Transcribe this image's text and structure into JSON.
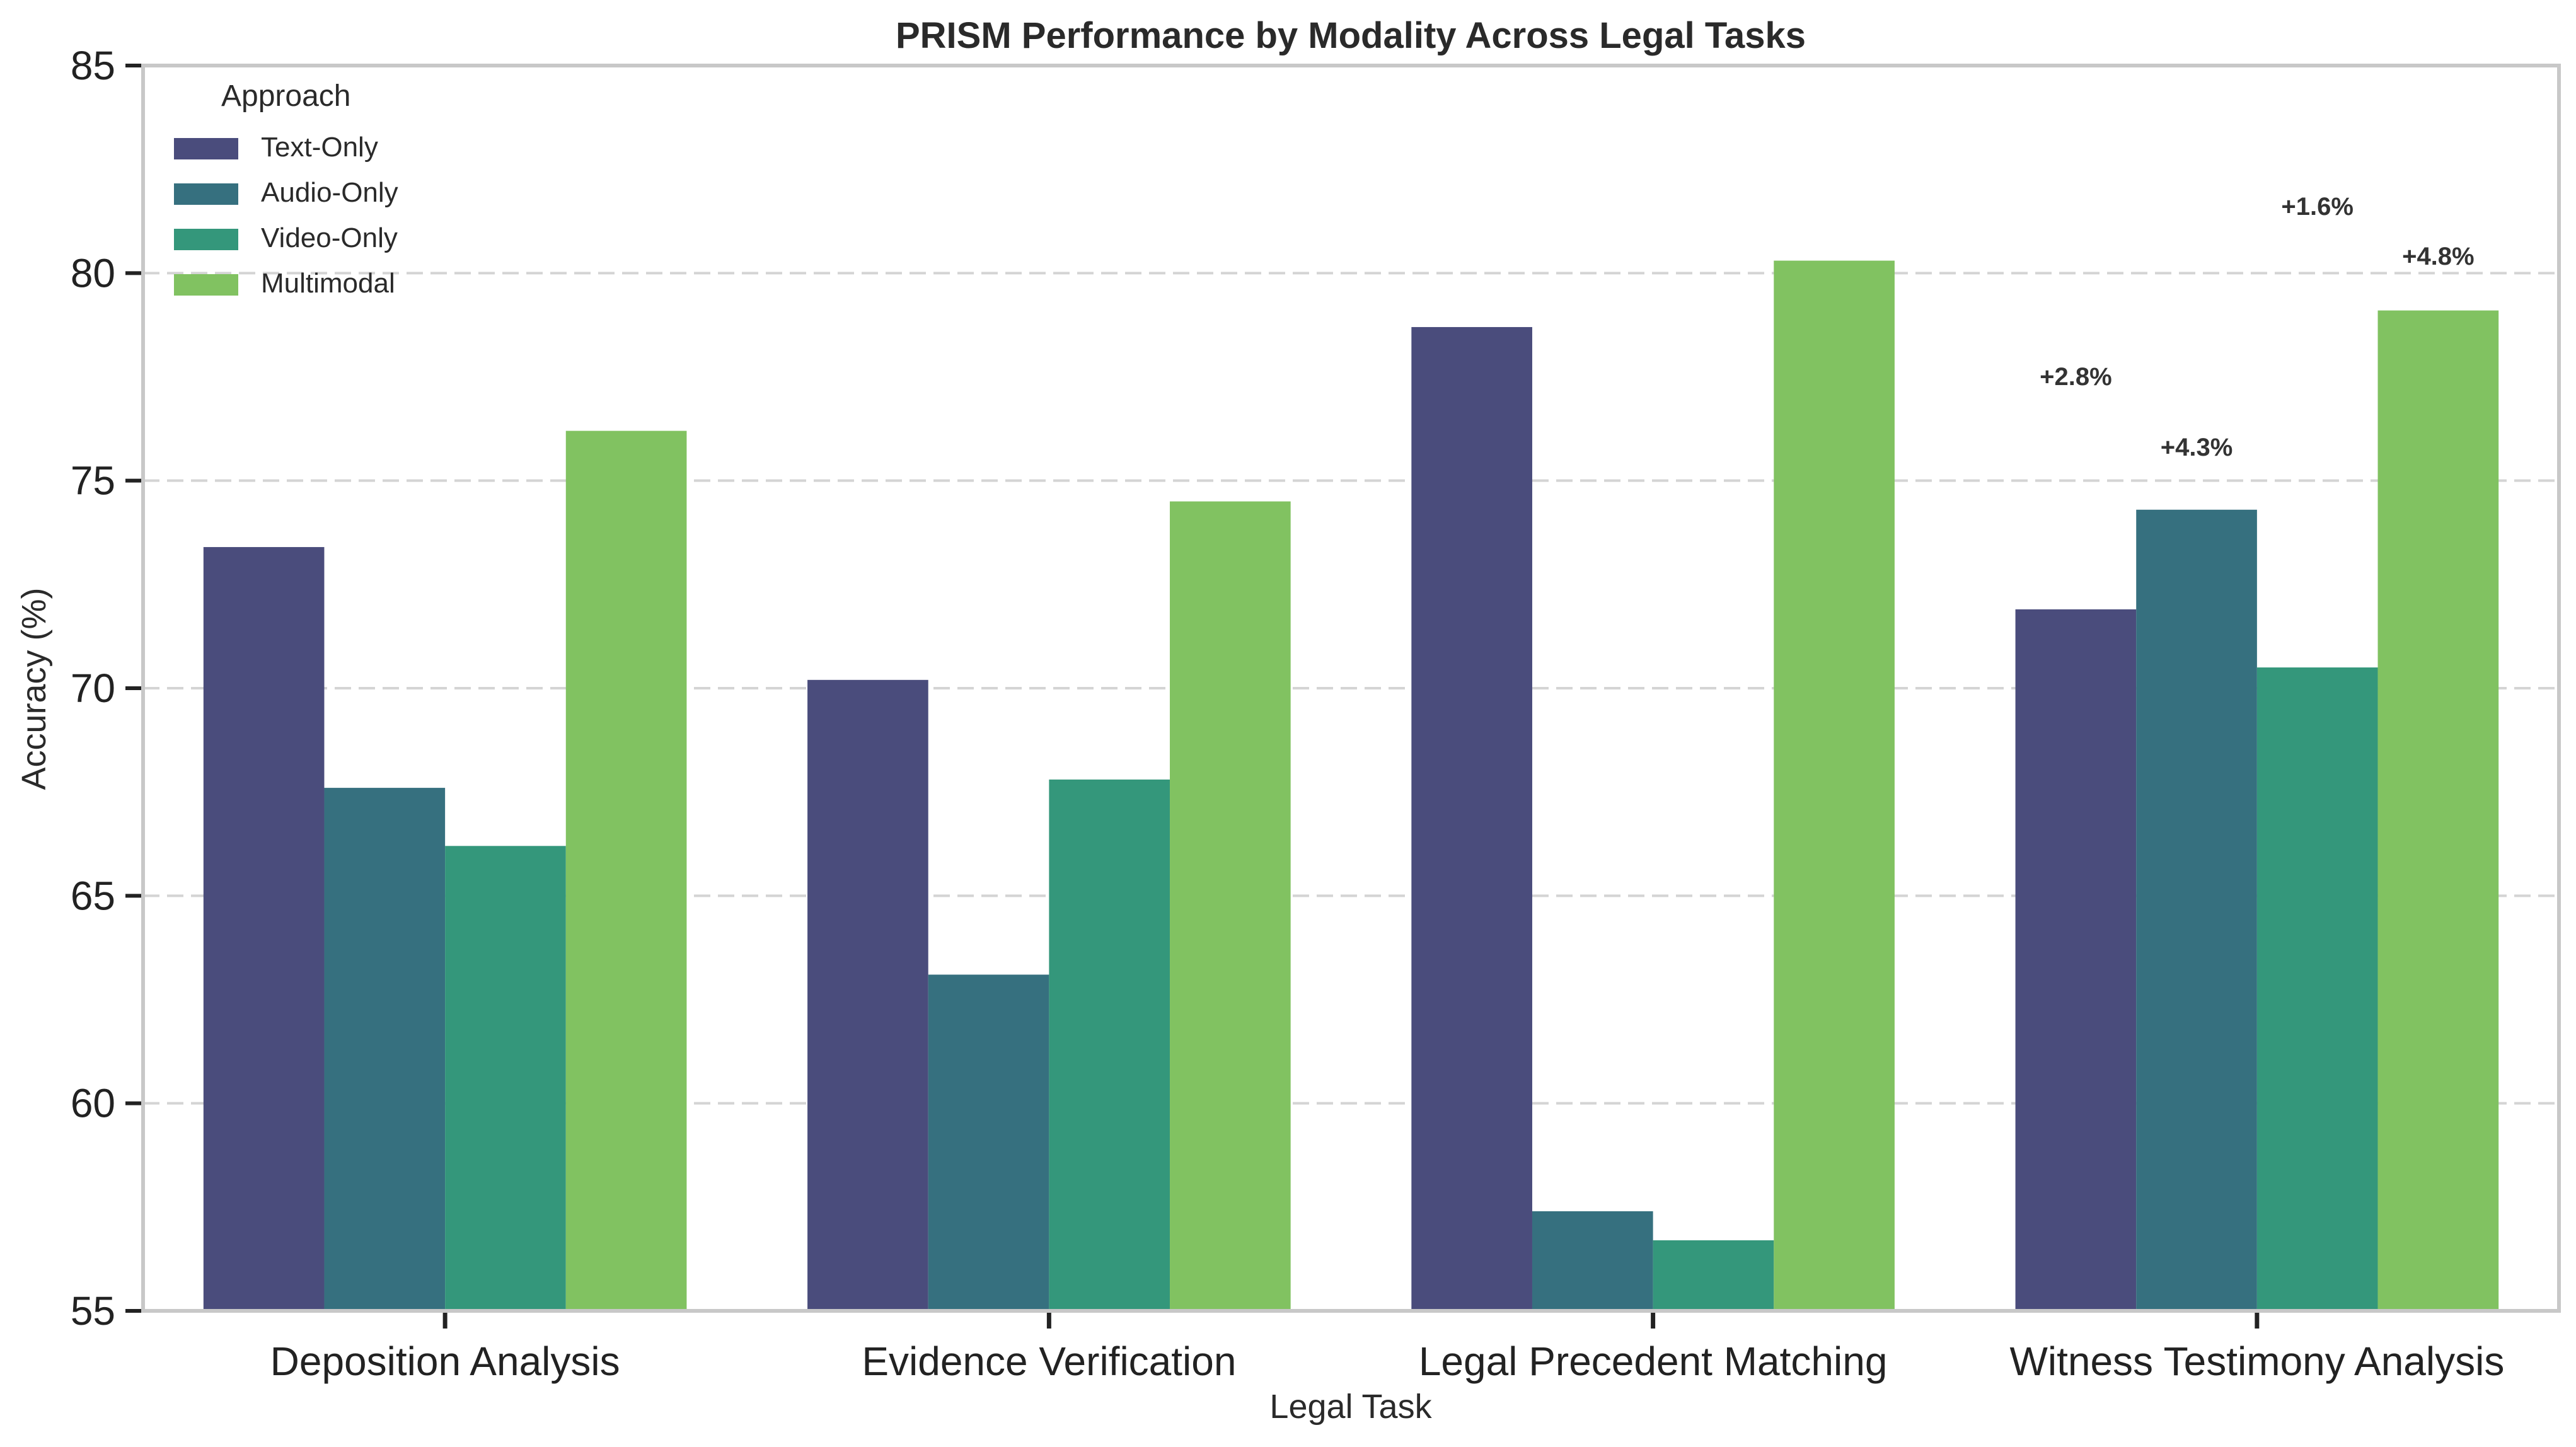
{
  "chart_data": {
    "type": "bar",
    "title": "PRISM Performance by Modality Across Legal Tasks",
    "xlabel": "Legal Task",
    "ylabel": "Accuracy (%)",
    "ylim": [
      55,
      85
    ],
    "yticks": [
      55,
      60,
      65,
      70,
      75,
      80,
      85
    ],
    "grid": "horizontal dashed",
    "legend": {
      "title": "Approach",
      "placement": "top-left"
    },
    "categories": [
      "Deposition Analysis",
      "Evidence Verification",
      "Legal Precedent Matching",
      "Witness Testimony Analysis"
    ],
    "series": [
      {
        "name": "Text-Only",
        "color": "#4a4c7c",
        "values": [
          73.4,
          70.2,
          78.7,
          71.9
        ]
      },
      {
        "name": "Audio-Only",
        "color": "#36707f",
        "values": [
          67.6,
          63.1,
          57.4,
          74.3
        ]
      },
      {
        "name": "Video-Only",
        "color": "#34977b",
        "values": [
          66.2,
          67.8,
          56.7,
          70.5
        ]
      },
      {
        "name": "Multimodal",
        "color": "#81c261",
        "values": [
          76.2,
          74.5,
          80.3,
          79.1
        ]
      }
    ],
    "annotations": [
      {
        "text": "+2.8%",
        "category": "Witness Testimony Analysis",
        "series": "Text-Only",
        "y": 77.3
      },
      {
        "text": "+4.3%",
        "category": "Witness Testimony Analysis",
        "series": "Audio-Only",
        "y": 75.6
      },
      {
        "text": "+1.6%",
        "category": "Witness Testimony Analysis",
        "series": "Video-Only",
        "y": 81.4
      },
      {
        "text": "+4.8%",
        "category": "Witness Testimony Analysis",
        "series": "Multimodal",
        "y": 80.2
      }
    ]
  }
}
